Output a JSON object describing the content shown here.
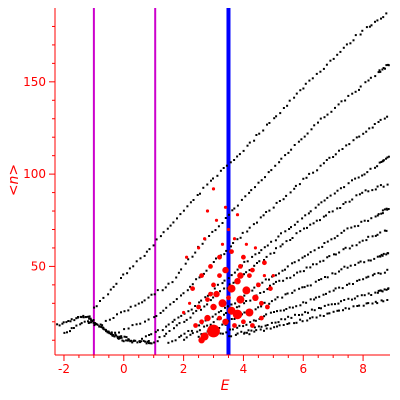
{
  "chart_data": {
    "type": "scatter",
    "title": "",
    "xlabel": "E",
    "ylabel": "<n>",
    "xlim": [
      -2.3,
      8.9
    ],
    "ylim": [
      2,
      190
    ],
    "x_ticks": [
      -2,
      0,
      2,
      4,
      6,
      8
    ],
    "y_ticks": [
      50,
      100,
      150
    ],
    "grid": false,
    "legend": "none",
    "vertical_lines": [
      {
        "x": -1.0,
        "color": "#cc00cc"
      },
      {
        "x": 1.05,
        "color": "#cc00cc"
      },
      {
        "x": 3.5,
        "color": "#0000ff"
      }
    ],
    "series": [
      {
        "color": "#000000",
        "bands": [
          {
            "x": [
              -2.2,
              -1.6,
              -1.2,
              -1.0,
              -0.6,
              -0.2,
              0.4
            ],
            "y": [
              18,
              22,
              23,
              20,
              15,
              12,
              10
            ]
          },
          {
            "x": [
              -2.0,
              -1.2,
              -0.8,
              -0.4,
              0.0,
              0.6,
              1.0
            ],
            "y": [
              14,
              20,
              18,
              13,
              10,
              9,
              9
            ]
          },
          {
            "x": [
              -1.0,
              0.0,
              1.0,
              2.0,
              3.0,
              4.0,
              5.0,
              6.0,
              7.0,
              8.0,
              8.9
            ],
            "y": [
              27,
              45,
              62,
              80,
              98,
              113,
              130,
              147,
              163,
              178,
              188
            ]
          },
          {
            "x": [
              -0.6,
              0.5,
              1.5,
              2.5,
              3.5,
              4.5,
              5.5,
              6.5,
              7.5,
              8.5,
              8.9
            ],
            "y": [
              20,
              30,
              40,
              60,
              78,
              95,
              112,
              128,
              142,
              155,
              160
            ]
          },
          {
            "x": [
              -0.3,
              1.0,
              2.0,
              3.0,
              4.0,
              5.0,
              6.0,
              7.0,
              8.0,
              8.9
            ],
            "y": [
              14,
              22,
              35,
              52,
              68,
              82,
              97,
              110,
              122,
              132
            ]
          },
          {
            "x": [
              0.5,
              1.5,
              2.5,
              3.5,
              4.5,
              5.5,
              6.5,
              7.5,
              8.5,
              8.9
            ],
            "y": [
              10,
              18,
              30,
              44,
              58,
              70,
              83,
              95,
              105,
              110
            ]
          },
          {
            "x": [
              1.0,
              2.0,
              3.0,
              4.0,
              5.0,
              6.0,
              7.0,
              8.0,
              8.9
            ],
            "y": [
              9,
              20,
              33,
              46,
              58,
              70,
              80,
              90,
              95
            ]
          },
          {
            "x": [
              1.5,
              2.5,
              3.5,
              4.5,
              5.5,
              6.5,
              7.5,
              8.5,
              8.9
            ],
            "y": [
              8,
              18,
              28,
              40,
              50,
              60,
              70,
              78,
              82
            ]
          },
          {
            "x": [
              2.0,
              3.0,
              4.0,
              5.0,
              6.0,
              7.0,
              8.0,
              8.9
            ],
            "y": [
              10,
              20,
              30,
              40,
              48,
              56,
              64,
              70
            ]
          },
          {
            "x": [
              2.5,
              3.5,
              4.5,
              5.5,
              6.5,
              7.5,
              8.5,
              8.9
            ],
            "y": [
              12,
              20,
              28,
              35,
              42,
              50,
              55,
              58
            ]
          },
          {
            "x": [
              3.0,
              4.0,
              5.0,
              6.0,
              7.0,
              8.0,
              8.9
            ],
            "y": [
              12,
              18,
              25,
              30,
              37,
              43,
              48
            ]
          },
          {
            "x": [
              3.5,
              4.5,
              5.5,
              6.5,
              7.5,
              8.5,
              8.9
            ],
            "y": [
              12,
              17,
              22,
              27,
              32,
              36,
              38
            ]
          },
          {
            "x": [
              4.0,
              5.0,
              6.0,
              7.0,
              8.0,
              8.9
            ],
            "y": [
              13,
              17,
              21,
              25,
              29,
              32
            ]
          }
        ]
      },
      {
        "color": "#ff0000",
        "points": [
          [
            3.0,
            15,
            8
          ],
          [
            2.7,
            12,
            5
          ],
          [
            2.6,
            10,
            4
          ],
          [
            3.8,
            24,
            6
          ],
          [
            3.6,
            26,
            5
          ],
          [
            4.2,
            25,
            5
          ],
          [
            3.3,
            30,
            5
          ],
          [
            3.0,
            28,
            4
          ],
          [
            2.8,
            22,
            4
          ],
          [
            3.1,
            35,
            4
          ],
          [
            3.6,
            38,
            5
          ],
          [
            3.8,
            42,
            4
          ],
          [
            4.1,
            37,
            5
          ],
          [
            4.4,
            33,
            4
          ],
          [
            3.9,
            45,
            4
          ],
          [
            3.4,
            48,
            4
          ],
          [
            3.0,
            40,
            3
          ],
          [
            2.8,
            32,
            3
          ],
          [
            2.5,
            28,
            3
          ],
          [
            2.4,
            18,
            3
          ],
          [
            3.2,
            22,
            3
          ],
          [
            3.7,
            18,
            3
          ],
          [
            4.0,
            20,
            3
          ],
          [
            4.3,
            18,
            3
          ],
          [
            4.6,
            22,
            3
          ],
          [
            4.8,
            28,
            3
          ],
          [
            4.5,
            40,
            3
          ],
          [
            4.3,
            48,
            3
          ],
          [
            4.0,
            55,
            3
          ],
          [
            3.6,
            58,
            3
          ],
          [
            3.2,
            55,
            3
          ],
          [
            2.9,
            50,
            3
          ],
          [
            2.6,
            45,
            3
          ],
          [
            2.3,
            38,
            3
          ],
          [
            2.2,
            30,
            2
          ],
          [
            2.0,
            25,
            2
          ],
          [
            4.9,
            38,
            3
          ],
          [
            5.0,
            45,
            2
          ],
          [
            4.7,
            52,
            3
          ],
          [
            4.1,
            62,
            2
          ],
          [
            3.7,
            65,
            2
          ],
          [
            2.5,
            60,
            2
          ],
          [
            2.1,
            55,
            2
          ],
          [
            3.5,
            70,
            2
          ],
          [
            3.1,
            75,
            2
          ],
          [
            2.8,
            80,
            2
          ],
          [
            3.4,
            82,
            2
          ],
          [
            3.0,
            92,
            2
          ],
          [
            3.8,
            78,
            2
          ],
          [
            4.4,
            60,
            2
          ],
          [
            2.7,
            65,
            2
          ],
          [
            3.3,
            62,
            2
          ],
          [
            3.9,
            50,
            3
          ],
          [
            4.2,
            45,
            3
          ],
          [
            2.9,
            35,
            3
          ],
          [
            3.5,
            33,
            3
          ],
          [
            4.6,
            30,
            3
          ],
          [
            2.6,
            20,
            3
          ],
          [
            3.4,
            20,
            4
          ],
          [
            3.9,
            32,
            5
          ],
          [
            3.2,
            45,
            3
          ],
          [
            4.7,
            45,
            2
          ]
        ]
      }
    ]
  }
}
